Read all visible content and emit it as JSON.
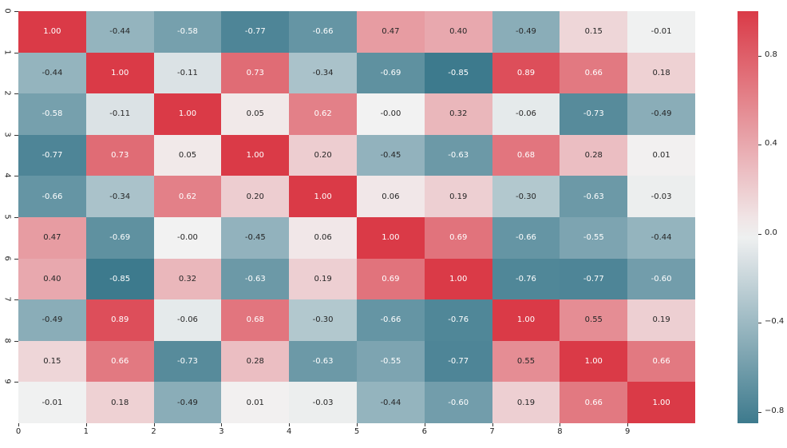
{
  "chart_data": {
    "type": "heatmap",
    "title": "",
    "xlabel": "",
    "ylabel": "",
    "x_tick_labels": [
      "0",
      "1",
      "2",
      "3",
      "4",
      "5",
      "6",
      "7",
      "8",
      "9"
    ],
    "y_tick_labels": [
      "0",
      "1",
      "2",
      "3",
      "4",
      "5",
      "6",
      "7",
      "8",
      "9"
    ],
    "annot_format": "{:.2f}",
    "matrix": [
      [
        1.0,
        -0.44,
        -0.58,
        -0.77,
        -0.66,
        0.47,
        0.4,
        -0.49,
        0.15,
        -0.01
      ],
      [
        -0.44,
        1.0,
        -0.11,
        0.73,
        -0.34,
        -0.69,
        -0.85,
        0.89,
        0.66,
        0.18
      ],
      [
        -0.58,
        -0.11,
        1.0,
        0.05,
        0.62,
        -0.0,
        0.32,
        -0.06,
        -0.73,
        -0.49
      ],
      [
        -0.77,
        0.73,
        0.05,
        1.0,
        0.2,
        -0.45,
        -0.63,
        0.68,
        0.28,
        0.01
      ],
      [
        -0.66,
        -0.34,
        0.62,
        0.2,
        1.0,
        0.06,
        0.19,
        -0.3,
        -0.63,
        -0.03
      ],
      [
        0.47,
        -0.69,
        -0.0,
        -0.45,
        0.06,
        1.0,
        0.69,
        -0.66,
        -0.55,
        -0.44
      ],
      [
        0.4,
        -0.85,
        0.32,
        -0.63,
        0.19,
        0.69,
        1.0,
        -0.76,
        -0.77,
        -0.6
      ],
      [
        -0.49,
        0.89,
        -0.06,
        0.68,
        -0.3,
        -0.66,
        -0.76,
        1.0,
        0.55,
        0.19
      ],
      [
        0.15,
        0.66,
        -0.73,
        0.28,
        -0.63,
        -0.55,
        -0.77,
        0.55,
        1.0,
        0.66
      ],
      [
        -0.01,
        0.18,
        -0.49,
        0.01,
        -0.03,
        -0.44,
        -0.6,
        0.19,
        0.66,
        1.0
      ]
    ],
    "colorbar": {
      "vmin": -0.85,
      "vmax": 1.0,
      "ticks": [
        0.8,
        0.4,
        0.0,
        -0.4,
        -0.8
      ],
      "tick_labels": [
        "0.8",
        "0.4",
        "0.0",
        "−0.4",
        "−0.8"
      ]
    },
    "colormap": {
      "negative_end": "#3d7a8d",
      "center": "#f2f2f2",
      "positive_end": "#da3a47"
    },
    "grid": false,
    "legend_position": "right (colorbar)"
  }
}
